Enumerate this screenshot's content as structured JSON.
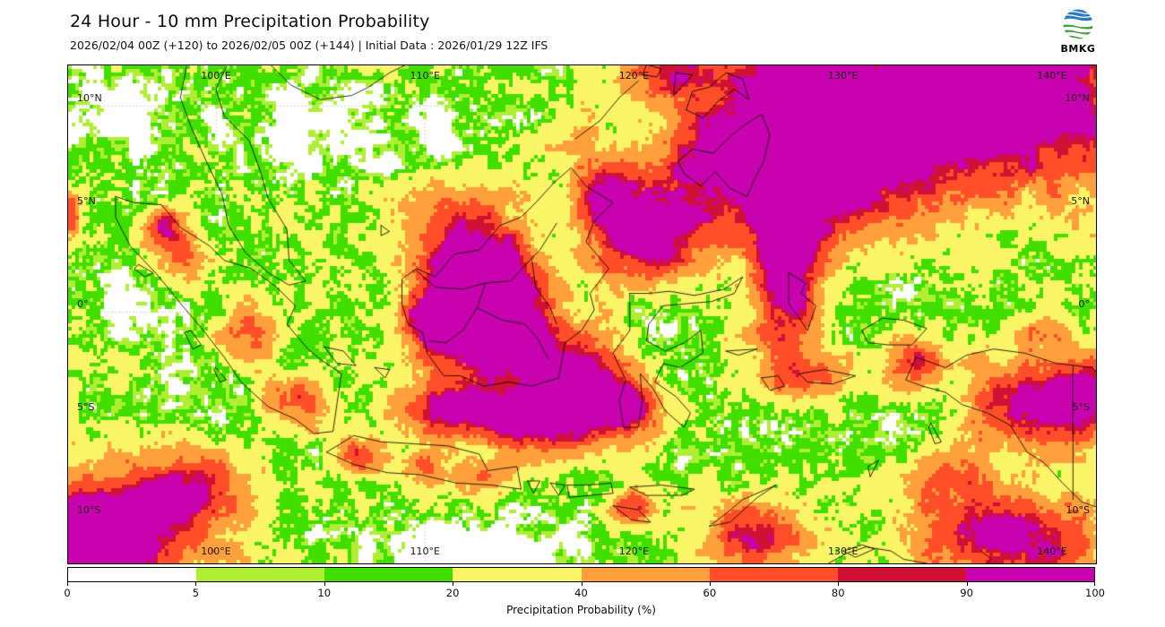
{
  "header": {
    "title": "24 Hour - 10 mm Precipitation Probability",
    "subtitle": "2026/02/04 00Z (+120) to 2026/02/05 00Z (+144) | Initial Data : 2026/01/29 12Z IFS",
    "logo_text": "BMKG"
  },
  "map": {
    "extent": {
      "lon_min": 92.93,
      "lon_max": 142.1,
      "lat_min": -12.2,
      "lat_max": 11.96
    },
    "lat_ticks": [
      {
        "label": "10°N",
        "value": 10
      },
      {
        "label": "5°N",
        "value": 5
      },
      {
        "label": "0°",
        "value": 0
      },
      {
        "label": "5°S",
        "value": -5
      },
      {
        "label": "10°S",
        "value": -10
      }
    ],
    "lon_ticks": [
      {
        "label": "100°E",
        "value": 100
      },
      {
        "label": "110°E",
        "value": 110
      },
      {
        "label": "120°E",
        "value": 120
      },
      {
        "label": "130°E",
        "value": 130
      },
      {
        "label": "140°E",
        "value": 140
      }
    ]
  },
  "colorbar": {
    "xlabel": "Precipitation Probability (%)",
    "ticks": [
      "0",
      "5",
      "10",
      "20",
      "40",
      "60",
      "80",
      "90",
      "100"
    ],
    "segments": [
      {
        "range": "0-5",
        "color": "#ffffff"
      },
      {
        "range": "5-10",
        "color": "#b0ee34"
      },
      {
        "range": "10-20",
        "color": "#40df00"
      },
      {
        "range": "20-40",
        "color": "#f9f566"
      },
      {
        "range": "40-60",
        "color": "#ffa03c"
      },
      {
        "range": "60-80",
        "color": "#ff4e28"
      },
      {
        "range": "80-90",
        "color": "#d11036"
      },
      {
        "range": "90-100",
        "color": "#c702ae"
      }
    ]
  },
  "map_data": {
    "type": "filled precipitation-probability field",
    "units": "%",
    "levels": [
      0,
      5,
      10,
      20,
      40,
      60,
      80,
      90,
      100
    ],
    "palette": [
      "#ffffff",
      "#b0ee34",
      "#40df00",
      "#f9f566",
      "#ffa03c",
      "#ff4e28",
      "#d11036",
      "#c702ae"
    ],
    "base": 18,
    "noise_amp": 55,
    "hotspots": [
      {
        "lon": 137.5,
        "lat": 10.5,
        "sx": 7.0,
        "sy": 4.5,
        "amp": 115
      },
      {
        "lon": 130.5,
        "lat": 8.0,
        "sx": 3.5,
        "sy": 3.5,
        "amp": 95
      },
      {
        "lon": 127.5,
        "lat": 11.5,
        "sx": 2.0,
        "sy": 1.5,
        "amp": 85
      },
      {
        "lon": 127.2,
        "lat": 2.0,
        "sx": 1.6,
        "sy": 5.0,
        "amp": 95
      },
      {
        "lon": 123.5,
        "lat": 6.5,
        "sx": 3.5,
        "sy": 3.0,
        "amp": 72
      },
      {
        "lon": 122.0,
        "lat": 11.5,
        "sx": 2.5,
        "sy": 1.5,
        "amp": 70
      },
      {
        "lon": 120.5,
        "lat": 3.5,
        "sx": 2.5,
        "sy": 2.2,
        "amp": 85
      },
      {
        "lon": 118.5,
        "lat": 5.5,
        "sx": 1.5,
        "sy": 1.5,
        "amp": 75
      },
      {
        "lon": 125.5,
        "lat": 9.0,
        "sx": 2.0,
        "sy": 2.0,
        "amp": 65
      },
      {
        "lon": 128.0,
        "lat": 6.0,
        "sx": 2.5,
        "sy": 2.5,
        "amp": 60
      },
      {
        "lon": 117.0,
        "lat": 9.0,
        "sx": 2.5,
        "sy": 2.0,
        "amp": 30
      },
      {
        "lon": 113.2,
        "lat": 0.5,
        "sx": 2.8,
        "sy": 2.2,
        "amp": 100
      },
      {
        "lon": 110.8,
        "lat": -0.5,
        "sx": 2.0,
        "sy": 1.8,
        "amp": 80
      },
      {
        "lon": 112.5,
        "lat": 2.5,
        "sx": 2.5,
        "sy": 1.5,
        "amp": 70
      },
      {
        "lon": 111.5,
        "lat": 4.8,
        "sx": 3.0,
        "sy": 2.0,
        "amp": 55
      },
      {
        "lon": 114.0,
        "lat": -1.8,
        "sx": 2.5,
        "sy": 1.8,
        "amp": 72
      },
      {
        "lon": 117.5,
        "lat": -2.8,
        "sx": 1.8,
        "sy": 1.8,
        "amp": 68
      },
      {
        "lon": 116.0,
        "lat": -5.0,
        "sx": 3.2,
        "sy": 1.8,
        "amp": 110
      },
      {
        "lon": 111.0,
        "lat": -4.8,
        "sx": 2.5,
        "sy": 1.4,
        "amp": 72
      },
      {
        "lon": 94.5,
        "lat": -10.8,
        "sx": 4.5,
        "sy": 3.0,
        "amp": 110
      },
      {
        "lon": 99.0,
        "lat": -8.5,
        "sx": 2.5,
        "sy": 2.0,
        "amp": 55
      },
      {
        "lon": 97.6,
        "lat": 4.2,
        "sx": 0.9,
        "sy": 0.9,
        "amp": 75
      },
      {
        "lon": 98.3,
        "lat": 2.8,
        "sx": 1.1,
        "sy": 1.1,
        "amp": 55
      },
      {
        "lon": 101.5,
        "lat": -1.0,
        "sx": 1.3,
        "sy": 1.3,
        "amp": 55
      },
      {
        "lon": 104.0,
        "lat": -4.2,
        "sx": 1.5,
        "sy": 1.2,
        "amp": 60
      },
      {
        "lon": 106.8,
        "lat": -7.0,
        "sx": 1.2,
        "sy": 0.9,
        "amp": 65
      },
      {
        "lon": 110.0,
        "lat": -7.5,
        "sx": 1.0,
        "sy": 0.8,
        "amp": 52
      },
      {
        "lon": 113.0,
        "lat": -8.0,
        "sx": 1.3,
        "sy": 0.8,
        "amp": 52
      },
      {
        "lon": 119.8,
        "lat": -4.5,
        "sx": 1.3,
        "sy": 1.7,
        "amp": 62
      },
      {
        "lon": 120.0,
        "lat": -9.6,
        "sx": 1.2,
        "sy": 0.9,
        "amp": 55
      },
      {
        "lon": 125.5,
        "lat": -10.5,
        "sx": 2.0,
        "sy": 1.5,
        "amp": 50
      },
      {
        "lon": 128.8,
        "lat": -3.2,
        "sx": 1.6,
        "sy": 1.0,
        "amp": 45
      },
      {
        "lon": 133.5,
        "lat": -2.5,
        "sx": 1.5,
        "sy": 1.2,
        "amp": 55
      },
      {
        "lon": 138.5,
        "lat": -4.5,
        "sx": 2.6,
        "sy": 2.0,
        "amp": 80
      },
      {
        "lon": 141.5,
        "lat": -4.2,
        "sx": 1.5,
        "sy": 2.0,
        "amp": 88
      },
      {
        "lon": 139.5,
        "lat": -1.0,
        "sx": 1.5,
        "sy": 1.0,
        "amp": 40
      },
      {
        "lon": 138.0,
        "lat": -11.0,
        "sx": 4.0,
        "sy": 2.0,
        "amp": 92
      },
      {
        "lon": 135.0,
        "lat": -8.0,
        "sx": 2.0,
        "sy": 1.5,
        "amp": 50
      },
      {
        "lon": 127.0,
        "lat": -11.5,
        "sx": 3.0,
        "sy": 1.5,
        "amp": 30
      },
      {
        "lon": 92.8,
        "lat": 4.8,
        "sx": 0.8,
        "sy": 1.2,
        "amp": 55
      },
      {
        "lon": 102.5,
        "lat": 4.5,
        "sx": 1.5,
        "sy": 1.5,
        "amp": 12
      },
      {
        "lon": 104.5,
        "lat": 9.0,
        "sx": 4.0,
        "sy": 2.5,
        "amp": -22
      },
      {
        "lon": 110.0,
        "lat": 7.5,
        "sx": 3.5,
        "sy": 2.5,
        "amp": -18
      },
      {
        "lon": 116.0,
        "lat": 9.5,
        "sx": 3.5,
        "sy": 2.5,
        "amp": -15
      },
      {
        "lon": 95.5,
        "lat": 9.5,
        "sx": 3.0,
        "sy": 2.5,
        "amp": -20
      },
      {
        "lon": 96.0,
        "lat": 0.5,
        "sx": 2.2,
        "sy": 1.8,
        "amp": -22
      },
      {
        "lon": 99.0,
        "lat": -4.0,
        "sx": 2.0,
        "sy": 1.5,
        "amp": -14
      },
      {
        "lon": 112.0,
        "lat": -11.5,
        "sx": 5.0,
        "sy": 1.5,
        "amp": -28
      },
      {
        "lon": 126.5,
        "lat": -5.5,
        "sx": 2.2,
        "sy": 1.6,
        "amp": -18
      },
      {
        "lon": 121.5,
        "lat": -0.3,
        "sx": 1.3,
        "sy": 0.8,
        "amp": -20
      },
      {
        "lon": 121.0,
        "lat": -7.2,
        "sx": 1.8,
        "sy": 1.0,
        "amp": -12
      },
      {
        "lon": 133.0,
        "lat": 0.8,
        "sx": 2.0,
        "sy": 1.2,
        "amp": -10
      },
      {
        "lon": 126.0,
        "lat": 1.0,
        "sx": 1.5,
        "sy": 1.5,
        "amp": -12
      },
      {
        "lon": 132.3,
        "lat": -5.3,
        "sx": 1.3,
        "sy": 1.0,
        "amp": -15
      }
    ]
  }
}
